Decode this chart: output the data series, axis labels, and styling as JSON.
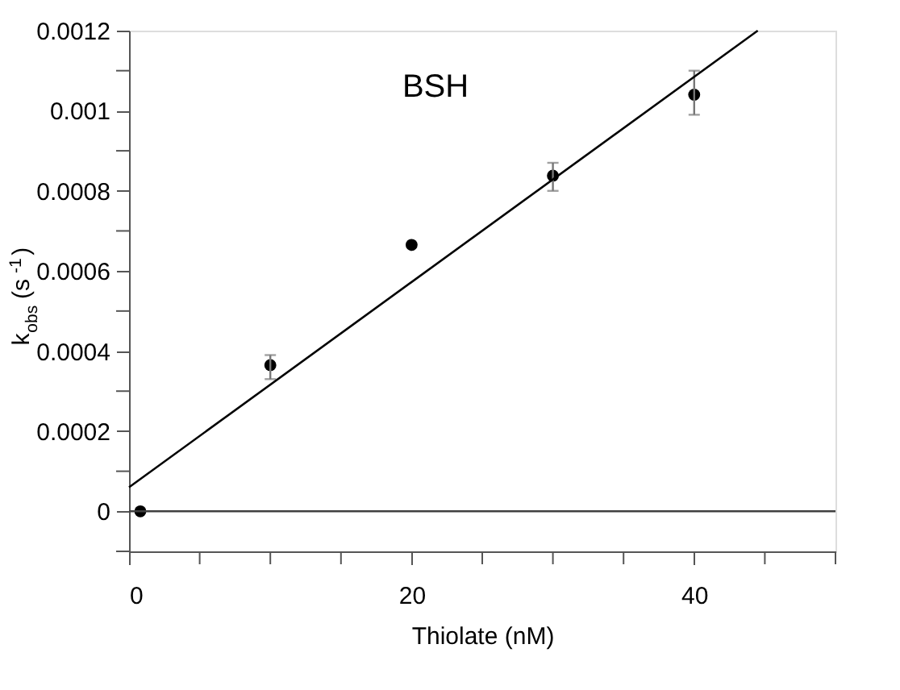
{
  "chart_data": {
    "type": "scatter",
    "xlabel": "Thiolate (nM)",
    "ylabel": "k$_{obs}$ (s$^{-1}$)",
    "annotations": [
      "BSH"
    ],
    "series": [
      {
        "type": "scatter",
        "color": "#000000",
        "x": [
          0.8,
          10,
          20,
          30,
          40
        ],
        "values": [
          0,
          0.000365,
          0.000665,
          0.000838,
          0.00104
        ],
        "errors": [
          null,
          [
            0.00033,
            0.00039
          ],
          null,
          [
            0.0008,
            0.00087
          ],
          [
            0.00099,
            0.0011
          ]
        ]
      },
      {
        "type": "line",
        "color": "#000000",
        "marker": "none",
        "x": [
          0,
          44.5
        ],
        "values": [
          6e-05,
          0.0012
        ]
      }
    ],
    "xlim": [
      0,
      50
    ],
    "xticks": [
      0,
      {
        "value": 5,
        "label": null
      },
      {
        "value": 10,
        "label": null
      },
      {
        "value": 15,
        "label": null
      },
      20,
      {
        "value": 25,
        "label": null
      },
      {
        "value": 30,
        "label": null
      },
      {
        "value": 35,
        "label": null
      },
      40,
      {
        "value": 45,
        "label": null
      },
      {
        "value": 50,
        "label": null
      }
    ],
    "ylim": [
      -0.0001,
      0.0012
    ],
    "yticks": [
      {
        "value": -0.0001,
        "label": null
      },
      0,
      {
        "value": 0.0001,
        "label": null
      },
      0.0002,
      {
        "value": 0.0003,
        "label": null
      },
      0.0004,
      {
        "value": 0.0005,
        "label": null
      },
      0.0006,
      {
        "value": 0.0007,
        "label": null
      },
      0.0008,
      {
        "value": 0.0009,
        "label": null
      },
      0.001,
      {
        "value": 0.0011,
        "label": null
      },
      0.0012
    ],
    "ref_lines": [
      {
        "axis": "y",
        "value": 0,
        "color": "#404040"
      }
    ],
    "grid": false,
    "legend": false,
    "marker": "circle"
  }
}
